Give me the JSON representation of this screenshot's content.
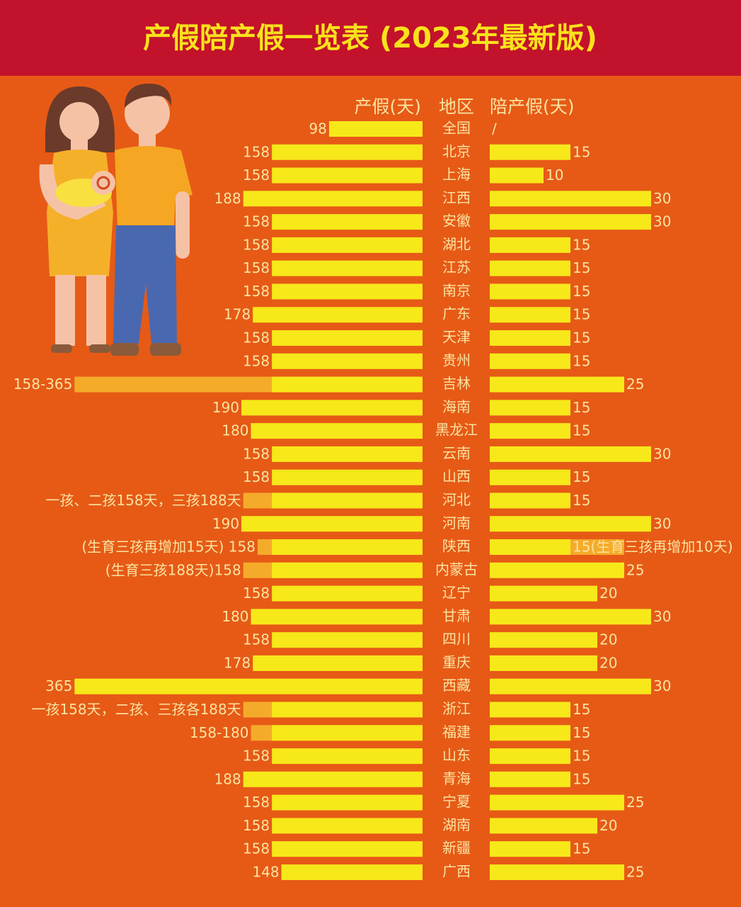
{
  "chart_data": {
    "type": "butterfly",
    "title": "产假陪产假一览表 (2023年最新版)",
    "category_label": "地区",
    "categories": [
      "全国",
      "北京",
      "上海",
      "江西",
      "安徽",
      "湖北",
      "江苏",
      "南京",
      "广东",
      "天津",
      "贵州",
      "吉林",
      "海南",
      "黑龙江",
      "云南",
      "山西",
      "河北",
      "河南",
      "陕西",
      "内蒙古",
      "辽宁",
      "甘肃",
      "四川",
      "重庆",
      "西藏",
      "浙江",
      "福建",
      "山东",
      "青海",
      "宁夏",
      "湖南",
      "新疆",
      "广西"
    ],
    "series": [
      {
        "name": "产假(天)",
        "color": "#f7e81a",
        "max_color": "#f5ab2a",
        "values": [
          98,
          158,
          158,
          188,
          158,
          158,
          158,
          158,
          178,
          158,
          158,
          158,
          190,
          180,
          158,
          158,
          158,
          190,
          158,
          158,
          158,
          180,
          158,
          178,
          365,
          158,
          158,
          158,
          188,
          158,
          158,
          158,
          148
        ],
        "max_values": [
          null,
          null,
          null,
          null,
          null,
          null,
          null,
          null,
          null,
          null,
          null,
          365,
          null,
          null,
          null,
          null,
          188,
          null,
          173,
          188,
          null,
          null,
          null,
          null,
          null,
          188,
          180,
          null,
          null,
          null,
          null,
          null,
          null
        ],
        "value_labels": [
          null,
          null,
          null,
          null,
          null,
          null,
          null,
          null,
          null,
          null,
          null,
          "158-365",
          null,
          null,
          null,
          null,
          "一孩、二孩158天，三孩188天",
          null,
          "(生育三孩再增加15天) 158",
          "(生育三孩188天)158",
          null,
          null,
          null,
          null,
          null,
          "一孩158天，二孩、三孩各188天",
          "158-180",
          null,
          null,
          null,
          null,
          null,
          null
        ]
      },
      {
        "name": "陪产假(天)",
        "color": "#f7e81a",
        "max_color": "#f5ab2a",
        "values": [
          null,
          15,
          10,
          30,
          30,
          15,
          15,
          15,
          15,
          15,
          15,
          25,
          15,
          15,
          30,
          15,
          15,
          30,
          15,
          25,
          20,
          30,
          20,
          20,
          30,
          15,
          15,
          15,
          15,
          25,
          20,
          15,
          25
        ],
        "max_values": [
          null,
          null,
          null,
          null,
          null,
          null,
          null,
          null,
          null,
          null,
          null,
          null,
          null,
          null,
          null,
          null,
          null,
          null,
          25,
          null,
          null,
          null,
          null,
          null,
          null,
          null,
          null,
          null,
          null,
          null,
          null,
          null,
          null
        ],
        "value_labels": [
          "/",
          null,
          null,
          null,
          null,
          null,
          null,
          null,
          null,
          null,
          null,
          null,
          null,
          null,
          null,
          null,
          null,
          null,
          "15(生育三孩再增加10天)",
          null,
          null,
          null,
          null,
          null,
          null,
          null,
          null,
          null,
          null,
          null,
          null,
          null,
          null
        ]
      }
    ]
  }
}
